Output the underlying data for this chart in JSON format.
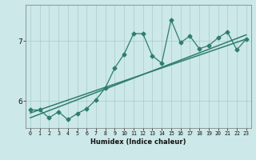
{
  "x": [
    0,
    1,
    2,
    3,
    4,
    5,
    6,
    7,
    8,
    9,
    10,
    11,
    12,
    13,
    14,
    15,
    16,
    17,
    18,
    19,
    20,
    21,
    22,
    23
  ],
  "y": [
    5.85,
    5.85,
    5.72,
    5.82,
    5.69,
    5.79,
    5.87,
    6.02,
    6.22,
    6.55,
    6.78,
    7.12,
    7.12,
    6.75,
    6.63,
    7.35,
    6.97,
    7.08,
    6.87,
    6.92,
    7.05,
    7.15,
    6.85,
    7.03
  ],
  "trend1_x": [
    0,
    23
  ],
  "trend1_y": [
    5.72,
    7.1
  ],
  "trend2_x": [
    0,
    23
  ],
  "trend2_y": [
    5.8,
    7.03
  ],
  "line_color": "#2e7d6e",
  "bg_color": "#cce8e8",
  "xlabel": "Humidex (Indice chaleur)",
  "ylabel_ticks": [
    6,
    7
  ],
  "xlim": [
    -0.5,
    23.5
  ],
  "ylim": [
    5.55,
    7.6
  ],
  "marker": "D",
  "markersize": 2.5,
  "linewidth": 0.9,
  "grid_color": "#aacccc",
  "xlabel_fontsize": 6.0,
  "xtick_fontsize": 4.8,
  "ytick_fontsize": 6.5
}
